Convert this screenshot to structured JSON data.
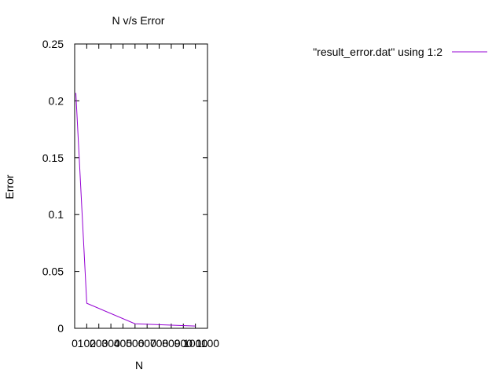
{
  "chart_data": {
    "type": "line",
    "title": "N v/s Error",
    "xlabel": "N",
    "ylabel": "Error",
    "xlim": [
      0,
      1100
    ],
    "ylim": [
      0,
      0.25
    ],
    "x_ticks": [
      0,
      100,
      200,
      300,
      400,
      500,
      600,
      700,
      800,
      900,
      1000,
      1100
    ],
    "x_tick_labels": [
      "0",
      "100",
      "200",
      "300",
      "400",
      "500",
      "600",
      "700",
      "800",
      "900",
      "1000",
      "1100"
    ],
    "y_ticks": [
      0,
      0.05,
      0.1,
      0.15,
      0.2,
      0.25
    ],
    "y_tick_labels": [
      "0",
      "0.05",
      "0.1",
      "0.15",
      "0.2",
      "0.25"
    ],
    "grid": false,
    "legend": "top-right",
    "series": [
      {
        "name": "\"result_error.dat\" using 1:2",
        "color": "#9400d3",
        "x": [
          10,
          100,
          500,
          1000
        ],
        "y": [
          0.207,
          0.022,
          0.004,
          0.002
        ]
      }
    ]
  }
}
